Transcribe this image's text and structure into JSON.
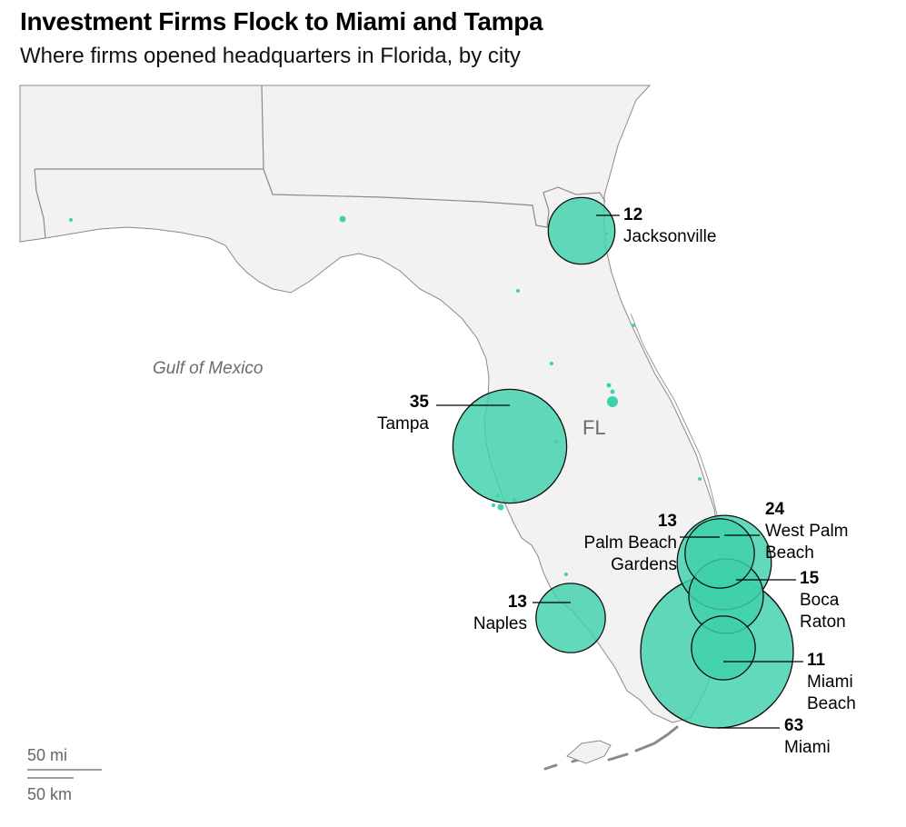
{
  "title": "Investment Firms Flock to Miami and Tampa",
  "subtitle": "Where firms opened headquarters in Florida, by city",
  "labels": {
    "water": "Gulf of Mexico",
    "state": "FL"
  },
  "scale_bar": {
    "miles": "50 mi",
    "km": "50 km"
  },
  "colors": {
    "bubble": "#3fd1ab",
    "bubble_stroke": "#0d0d0d",
    "land": "#f2f2f2",
    "border": "#8a8a8a",
    "water": "#ffffff"
  },
  "cities": [
    {
      "name": "Jacksonville",
      "label": "Jacksonville",
      "value": 12
    },
    {
      "name": "Tampa",
      "label": "Tampa",
      "value": 35
    },
    {
      "name": "Palm Beach Gardens",
      "label": "Palm Beach Gardens",
      "value": 13
    },
    {
      "name": "West Palm Beach",
      "label": "West Palm Beach",
      "value": 24
    },
    {
      "name": "Boca Raton",
      "label": "Boca Raton",
      "value": 15
    },
    {
      "name": "Naples",
      "label": "Naples",
      "value": 13
    },
    {
      "name": "Miami Beach",
      "label": "Miami Beach",
      "value": 11
    },
    {
      "name": "Miami",
      "label": "Miami",
      "value": 63
    }
  ]
}
